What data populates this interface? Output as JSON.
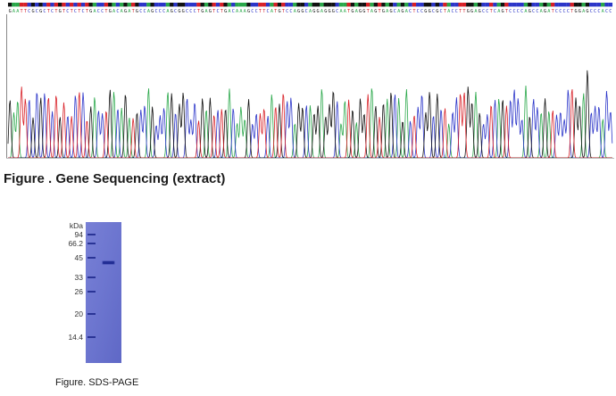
{
  "sequencing": {
    "bases": "GAATTCGCGCTCTGTCTCTCTGACCTGACAGATGCCAGCCCAGCGGCCCTGAGTCTGACAAAGCCTTCATGTCCAGGCAGGAGGGCAATGAGGTAGTGAGCAGACTCCGGCGCTACCTTGGAGCCTCAGTCCCCAGCCAGATCCCCTGGAGCCCACC",
    "caption": "Figure . Gene Sequencing (extract)",
    "colors": {
      "A": "#2aa84a",
      "C": "#2b35c9",
      "G": "#111111",
      "T": "#d81f26"
    }
  },
  "gel": {
    "unit_label": "kDa",
    "markers": [
      "94",
      "66.2",
      "45",
      "33",
      "26",
      "20",
      "14.4"
    ],
    "gel_color": "#6f78d2",
    "band_color": "#1e2a8f",
    "caption": "Figure. SDS-PAGE"
  }
}
